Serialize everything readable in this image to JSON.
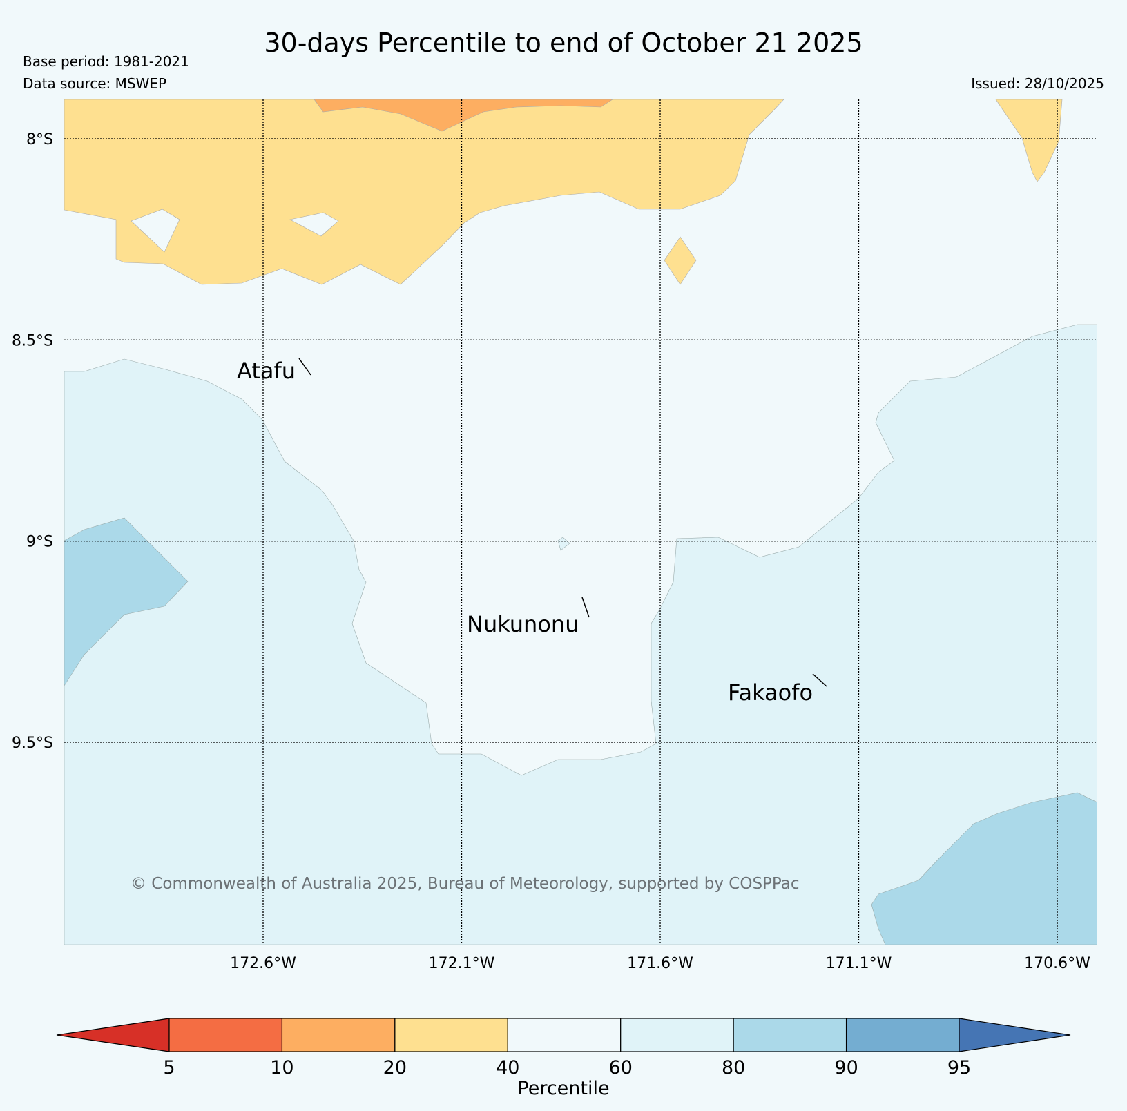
{
  "title": "30-days Percentile to end of October 21 2025",
  "base_period": "Base period: 1981-2021",
  "data_source": "Data source: MSWEP",
  "issued": "Issued: 28/10/2025",
  "latitudes": [
    {
      "value": -8.0,
      "label": "8°S"
    },
    {
      "value": -8.5,
      "label": "8.5°S"
    },
    {
      "value": -9.0,
      "label": "9°S"
    },
    {
      "value": -9.5,
      "label": "9.5°S"
    }
  ],
  "longitudes": [
    {
      "value": -172.6,
      "label": "172.6°W"
    },
    {
      "value": -172.1,
      "label": "172.1°W"
    },
    {
      "value": -171.6,
      "label": "171.6°W"
    },
    {
      "value": -171.1,
      "label": "171.1°W"
    },
    {
      "value": -170.6,
      "label": "170.6°W"
    }
  ],
  "places": [
    {
      "name": "Atafu"
    },
    {
      "name": "Nukunonu"
    },
    {
      "name": "Fakaofo"
    }
  ],
  "copyright": "© Commonwealth of Australia 2025, Bureau of Meteorology, supported by COSPPac",
  "colorbar": {
    "title": "Percentile",
    "ticks": [
      "5",
      "10",
      "20",
      "40",
      "60",
      "80",
      "90",
      "95"
    ],
    "under_color": "#d73027",
    "over_color": "#4575b4",
    "segment_colors": [
      "#f46d43",
      "#fdae61",
      "#fee090",
      "#f1f9fb",
      "#e0f3f8",
      "#abd9e9",
      "#74add1"
    ]
  },
  "colors": {
    "background": "#f1f9fb",
    "p10_20": "#fdae61",
    "p20_40": "#fee090",
    "p40_60": "#f1f9fb",
    "p60_80": "#e0f3f8",
    "p80_90": "#abd9e9"
  }
}
